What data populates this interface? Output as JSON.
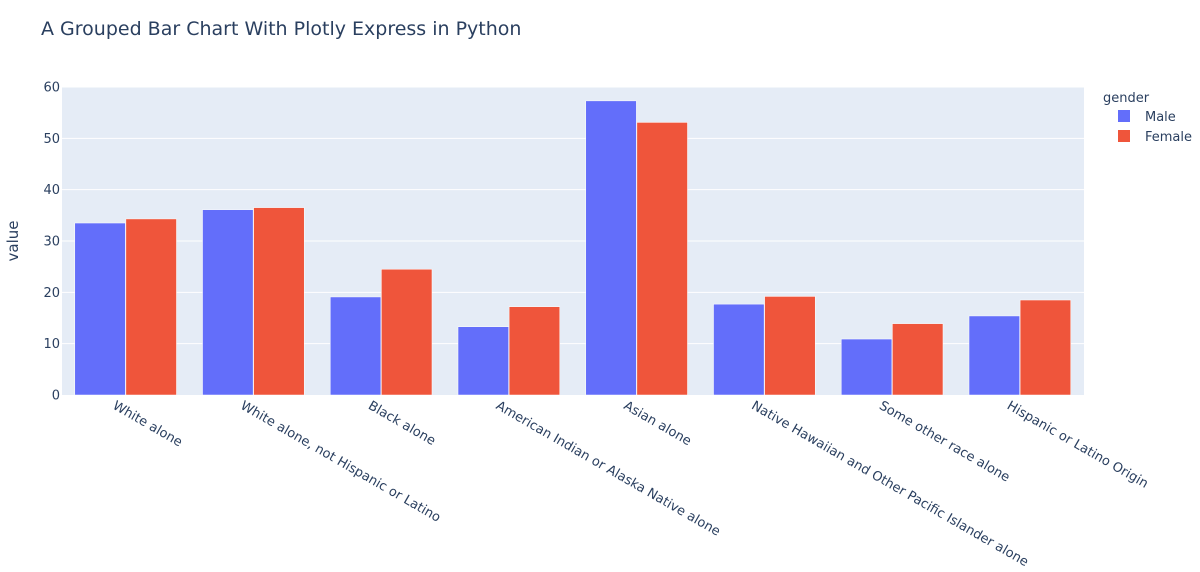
{
  "chart_data": {
    "type": "bar",
    "barmode": "group",
    "title": "A Grouped Bar Chart With Plotly Express in Python",
    "xlabel": "",
    "ylabel": "value",
    "ylim": [
      0,
      60
    ],
    "yticks": [
      0,
      10,
      20,
      30,
      40,
      50,
      60
    ],
    "grid": true,
    "categories": [
      "White alone",
      "White alone, not Hispanic or Latino",
      "Black alone",
      "American Indian or Alaska Native alone",
      "Asian alone",
      "Native Hawaiian and Other Pacific Islander alone",
      "Some other race alone",
      "Hispanic or Latino Origin"
    ],
    "legend": {
      "title": "gender",
      "placement": "top-right"
    },
    "series": [
      {
        "name": "Male",
        "color": "#636efa",
        "values": [
          33.5,
          36.1,
          19.1,
          13.3,
          57.3,
          17.7,
          10.9,
          15.4
        ]
      },
      {
        "name": "Female",
        "color": "#ef553b",
        "values": [
          34.3,
          36.5,
          24.5,
          17.2,
          53.1,
          19.2,
          13.9,
          18.5
        ]
      }
    ]
  }
}
